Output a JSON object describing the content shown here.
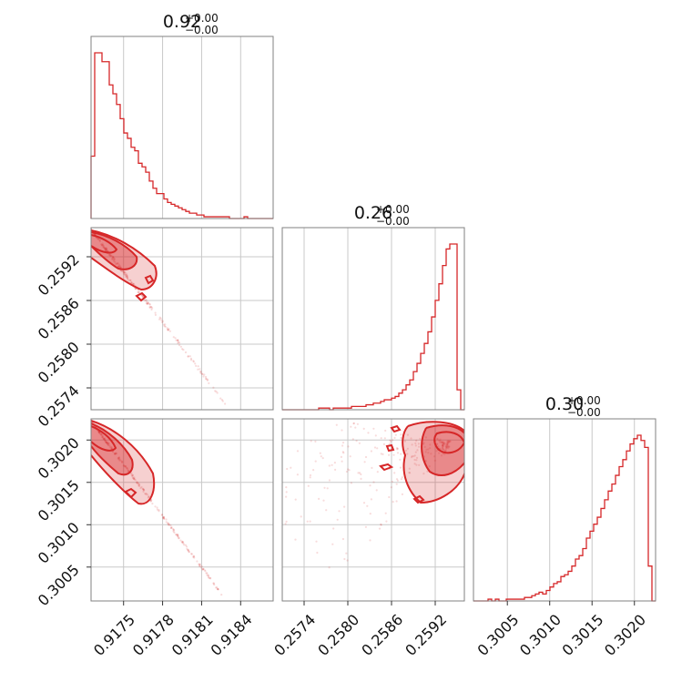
{
  "chart_data": {
    "type": "corner",
    "color": "#d62728",
    "grid": true,
    "params": [
      {
        "title_value": "0.92",
        "err_plus": "+0.00",
        "err_minus": "−0.00",
        "range": [
          0.91725,
          0.91865
        ],
        "ticks": [
          "0.9175",
          "0.9178",
          "0.9181",
          "0.9184"
        ],
        "tick_values": [
          0.9175,
          0.9178,
          0.9181,
          0.9184
        ],
        "hist": [
          35,
          93,
          93,
          88,
          88,
          75,
          70,
          64,
          56,
          48,
          45,
          40,
          38,
          31,
          29,
          26,
          21,
          17,
          14,
          14,
          11,
          9,
          8,
          7,
          6,
          5,
          4,
          3,
          3,
          2,
          2,
          1,
          1,
          1,
          1,
          1,
          1,
          1,
          0,
          0,
          0,
          0,
          1,
          0,
          0,
          0,
          0,
          0,
          0,
          0
        ]
      },
      {
        "title_value": "0.26",
        "err_plus": "+0.00",
        "err_minus": "−0.00",
        "range": [
          0.2571,
          0.2596
        ],
        "ticks": [
          "0.2574",
          "0.2580",
          "0.2586",
          "0.2592"
        ],
        "tick_values": [
          0.2574,
          0.258,
          0.2586,
          0.2592
        ],
        "hist": [
          0,
          0,
          0,
          0,
          0,
          0,
          0,
          0,
          0,
          0,
          1,
          1,
          1,
          0,
          1,
          1,
          1,
          1,
          1,
          2,
          2,
          2,
          2,
          3,
          3,
          4,
          4,
          5,
          6,
          6,
          7,
          8,
          10,
          12,
          15,
          18,
          23,
          28,
          34,
          40,
          47,
          56,
          66,
          76,
          87,
          97,
          100,
          100,
          12,
          0
        ]
      },
      {
        "title_value": "0.30",
        "err_plus": "+0.00",
        "err_minus": "−0.00",
        "range": [
          0.3001,
          0.30225
        ],
        "ticks": [
          "0.3005",
          "0.3010",
          "0.3015",
          "0.3020"
        ],
        "tick_values": [
          0.3005,
          0.301,
          0.3015,
          0.302
        ],
        "hist": [
          0,
          0,
          0,
          0,
          1,
          0,
          1,
          0,
          0,
          1,
          1,
          1,
          1,
          1,
          2,
          2,
          3,
          4,
          5,
          4,
          6,
          8,
          10,
          11,
          14,
          15,
          17,
          20,
          24,
          26,
          30,
          36,
          40,
          44,
          48,
          53,
          58,
          63,
          67,
          72,
          77,
          81,
          86,
          90,
          93,
          95,
          92,
          88,
          20,
          0
        ]
      }
    ]
  }
}
